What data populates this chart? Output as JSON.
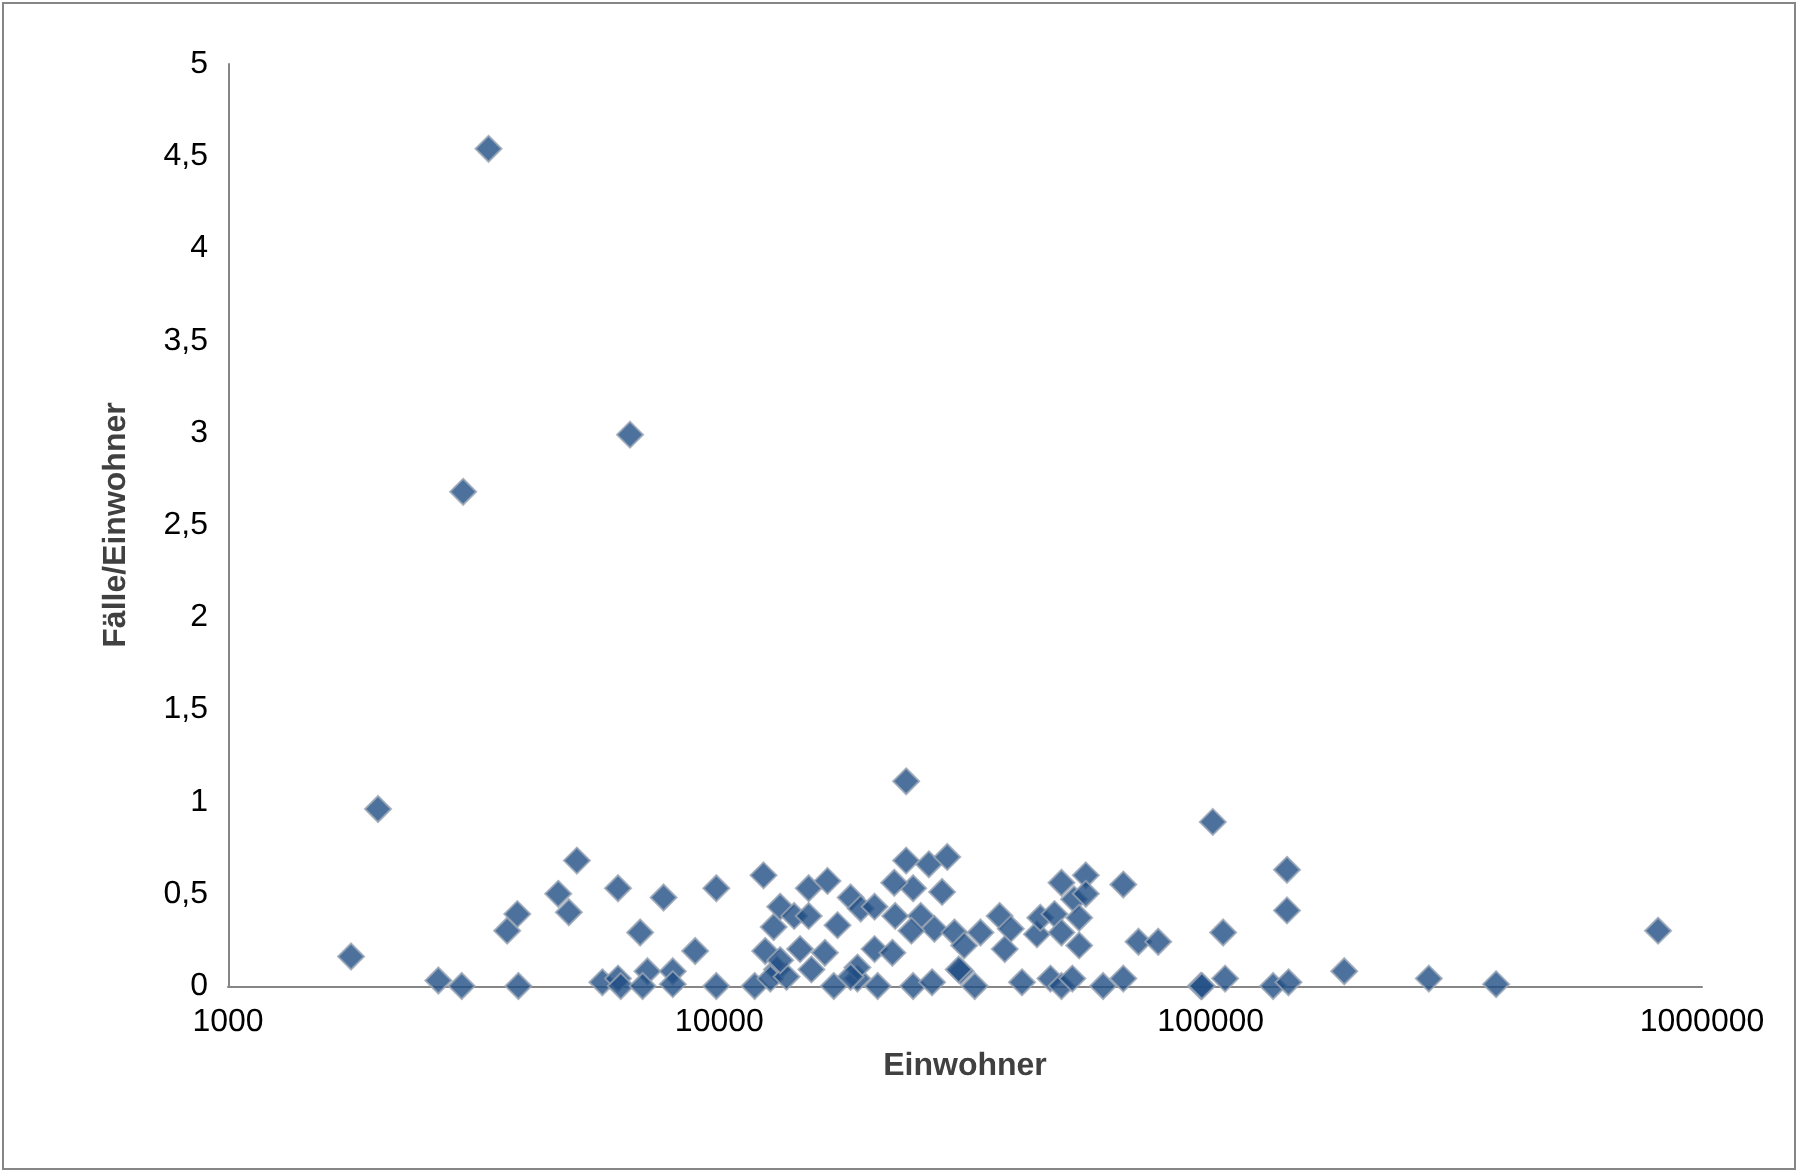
{
  "chart_data": {
    "type": "scatter",
    "xlabel": "Einwohner",
    "ylabel": "Fälle/Einwohner",
    "log": "x",
    "marker": "diamond",
    "xlim": [
      1000,
      1000000
    ],
    "xticks": [
      1000,
      10000,
      100000,
      1000000
    ],
    "ylim": [
      0,
      5
    ],
    "yticks": [
      0,
      {
        "value": 0.5,
        "label": "0,5"
      },
      1,
      {
        "value": 1.5,
        "label": "1,5"
      },
      2,
      {
        "value": 2.5,
        "label": "2,5"
      },
      3,
      {
        "value": 3.5,
        "label": "3,5"
      },
      4,
      {
        "value": 4.5,
        "label": "4,5"
      },
      5
    ],
    "series": [
      {
        "color": "#1f4e85",
        "x": [
          1780,
          2020,
          2680,
          2990,
          3010,
          3390,
          3700,
          3880,
          3900,
          5130,
          4700,
          4940,
          6220,
          5780,
          6220,
          6300,
          6580,
          6900,
          7140,
          6980,
          7700,
          8040,
          8040,
          8930,
          9860,
          9860,
          11800,
          12300,
          12400,
          12900,
          13300,
          13100,
          12700,
          24000,
          101000,
          24000,
          26700,
          29100,
          24800,
          22700,
          28400,
          15200,
          16600,
          18500,
          19400,
          20700,
          14200,
          15200,
          17400,
          22800,
          25700,
          27400,
          24600,
          30100,
          31500,
          34000,
          37200,
          39200,
          38100,
          44300,
          45000,
          48100,
          49700,
          52700,
          55700,
          55700,
          54000,
          54000,
          49700,
          66400,
          71300,
          78200,
          106000,
          107000,
          95500,
          13700,
          17100,
          19100,
          21000,
          24800,
          27100,
          31000,
          33100,
          41300,
          47200,
          49700,
          52300,
          60400,
          66400,
          15400,
          16400,
          14600,
          13300,
          20700,
          22500,
          19100,
          18500,
          30700,
          143000,
          143000,
          814000,
          96000,
          134000,
          144000,
          187000,
          278000,
          381000
        ],
        "values": [
          0.16,
          0.96,
          0.03,
          0,
          2.68,
          4.54,
          0.3,
          0.39,
          0,
          0.68,
          0.5,
          0.4,
          0.53,
          0.02,
          0.04,
          0,
          2.99,
          0.29,
          0.08,
          0,
          0.48,
          0.08,
          0.01,
          0.19,
          0.53,
          0,
          0,
          0.6,
          0.19,
          0.32,
          0.43,
          0.09,
          0.04,
          1.11,
          0.89,
          0.68,
          0.66,
          0.7,
          0.53,
          0.56,
          0.51,
          0.53,
          0.57,
          0.48,
          0.42,
          0.43,
          0.38,
          0.38,
          0.33,
          0.38,
          0.38,
          0.31,
          0.3,
          0.29,
          0.22,
          0.29,
          0.38,
          0.31,
          0.2,
          0.28,
          0.37,
          0.39,
          0.56,
          0.47,
          0.6,
          0.5,
          0.37,
          0.22,
          0.29,
          0.55,
          0.24,
          0.24,
          0.29,
          0.04,
          0,
          0.05,
          0,
          0.04,
          0,
          0,
          0.02,
          0.08,
          0,
          0.02,
          0.04,
          0,
          0.04,
          0,
          0.04,
          0.09,
          0.18,
          0.2,
          0.14,
          0.2,
          0.18,
          0.1,
          0.05,
          0.09,
          0.63,
          0.41,
          0.3,
          0,
          0,
          0.02,
          0.08,
          0.04,
          0.01
        ]
      }
    ]
  }
}
